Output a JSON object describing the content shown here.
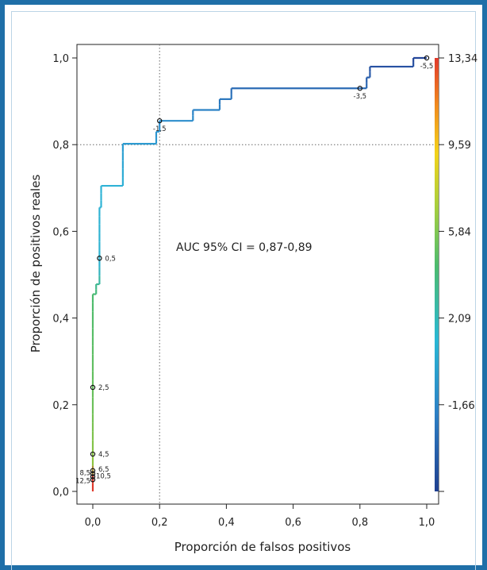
{
  "chart_data": {
    "type": "line",
    "title": "",
    "xlabel": "Proporción de falsos positivos",
    "ylabel": "Proporción de positivos reales",
    "xlim": [
      0,
      1
    ],
    "ylim": [
      0,
      1
    ],
    "x_ticks": [
      "0,0",
      "0,2",
      "0,4",
      "0,6",
      "0,8",
      "1,0"
    ],
    "y_ticks": [
      "0,0",
      "0,2",
      "0,4",
      "0,6",
      "0,8",
      "1,0"
    ],
    "annotation": "AUC 95% CI = 0,87-0,89",
    "reference_lines": {
      "x": 0.2,
      "y": 0.8,
      "style": "dotted"
    },
    "grid": false,
    "colorbar": {
      "ticks": [
        "-1,66",
        "2,09",
        "5,84",
        "9,59",
        "13,34"
      ],
      "colors": [
        "#1f3f8f",
        "#2c7fc4",
        "#29b7d4",
        "#4cbb6e",
        "#a9cf3c",
        "#f2d21a",
        "#f08a1e",
        "#e0392b"
      ]
    },
    "roc_curve": [
      [
        0.0,
        0.0
      ],
      [
        0.0,
        0.455
      ],
      [
        0.01,
        0.455
      ],
      [
        0.01,
        0.478
      ],
      [
        0.02,
        0.478
      ],
      [
        0.02,
        0.655
      ],
      [
        0.025,
        0.655
      ],
      [
        0.025,
        0.705
      ],
      [
        0.09,
        0.705
      ],
      [
        0.09,
        0.802
      ],
      [
        0.19,
        0.802
      ],
      [
        0.19,
        0.83
      ],
      [
        0.2,
        0.83
      ],
      [
        0.2,
        0.855
      ],
      [
        0.3,
        0.855
      ],
      [
        0.3,
        0.88
      ],
      [
        0.38,
        0.88
      ],
      [
        0.38,
        0.905
      ],
      [
        0.415,
        0.905
      ],
      [
        0.415,
        0.93
      ],
      [
        0.8,
        0.93
      ],
      [
        0.8,
        0.93
      ],
      [
        0.82,
        0.93
      ],
      [
        0.82,
        0.955
      ],
      [
        0.83,
        0.955
      ],
      [
        0.83,
        0.98
      ],
      [
        0.96,
        0.98
      ],
      [
        0.96,
        1.0
      ],
      [
        1.0,
        1.0
      ]
    ],
    "threshold_points": [
      {
        "x": 0.0,
        "y": 0.027,
        "label": "12,5"
      },
      {
        "x": 0.0,
        "y": 0.034,
        "label": "10,5"
      },
      {
        "x": 0.0,
        "y": 0.041,
        "label": "8,5"
      },
      {
        "x": 0.0,
        "y": 0.048,
        "label": "6,5"
      },
      {
        "x": 0.0,
        "y": 0.086,
        "label": "4,5"
      },
      {
        "x": 0.0,
        "y": 0.24,
        "label": "2,5"
      },
      {
        "x": 0.02,
        "y": 0.538,
        "label": "0,5"
      },
      {
        "x": 0.2,
        "y": 0.855,
        "label": "-1,5"
      },
      {
        "x": 0.8,
        "y": 0.93,
        "label": "-3,5"
      },
      {
        "x": 1.0,
        "y": 1.0,
        "label": "-5,5"
      }
    ]
  }
}
